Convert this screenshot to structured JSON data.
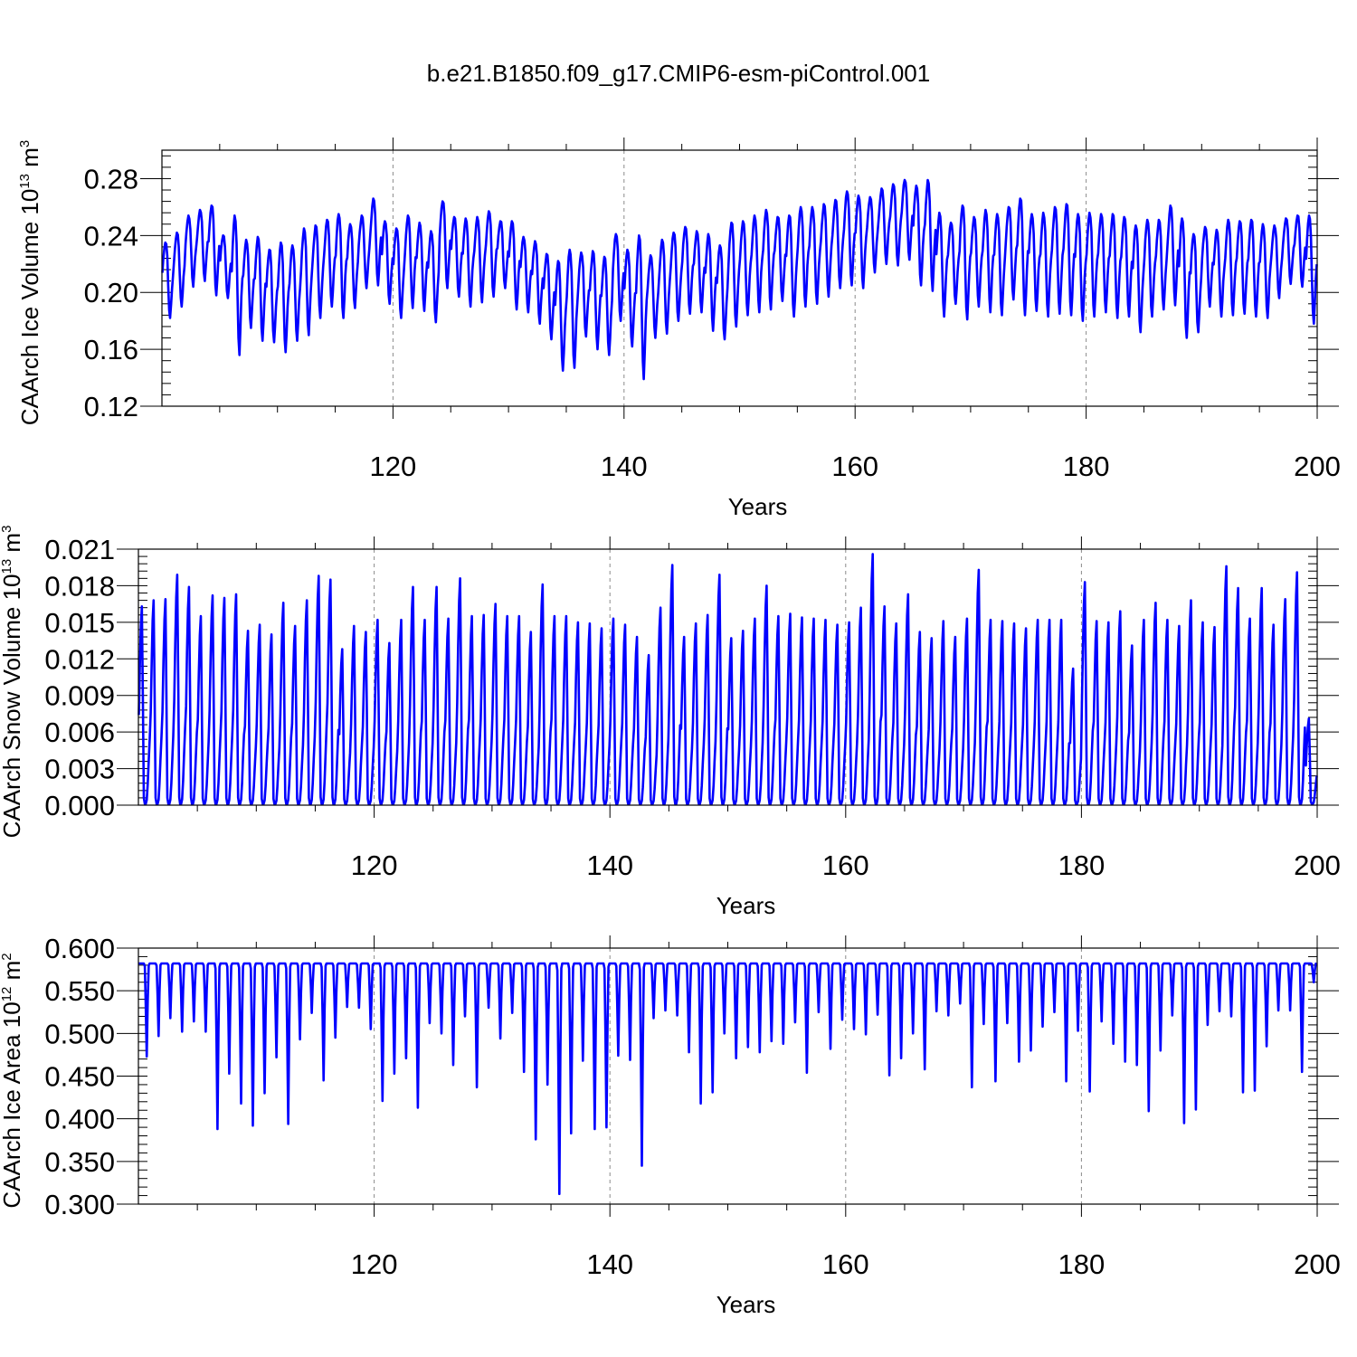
{
  "title": "b.e21.B1850.f09_g17.CMIP6-esm-piControl.001",
  "line_color": "#0000ff",
  "chart_data": [
    {
      "type": "line",
      "id": "ice-volume",
      "title": "",
      "ylabel_main": "CAArch Ice Volume 10",
      "ylabel_exp": "13",
      "ylabel_unit": " m",
      "ylabel_unit_exp": "3",
      "xlabel": "Years",
      "xlim": [
        100,
        200
      ],
      "ylim": [
        0.12,
        0.3
      ],
      "x_ticks": [
        120,
        140,
        160,
        180,
        200
      ],
      "x_tick_labels": [
        "120",
        "140",
        "160",
        "180",
        "200"
      ],
      "y_ticks": [
        0.12,
        0.16,
        0.2,
        0.24,
        0.28
      ],
      "y_tick_labels": [
        "0.12",
        "0.16",
        "0.20",
        "0.24",
        "0.28"
      ],
      "series": [
        {
          "name": "CAArch Ice Volume",
          "x_start": 100,
          "step": 1,
          "yearly_max": [
            0.235,
            0.242,
            0.254,
            0.258,
            0.261,
            0.24,
            0.254,
            0.237,
            0.239,
            0.23,
            0.235,
            0.233,
            0.245,
            0.247,
            0.251,
            0.255,
            0.248,
            0.254,
            0.266,
            0.25,
            0.245,
            0.254,
            0.249,
            0.243,
            0.264,
            0.253,
            0.252,
            0.253,
            0.257,
            0.25,
            0.25,
            0.239,
            0.236,
            0.227,
            0.222,
            0.23,
            0.228,
            0.229,
            0.225,
            0.241,
            0.23,
            0.24,
            0.226,
            0.237,
            0.242,
            0.246,
            0.243,
            0.241,
            0.233,
            0.249,
            0.25,
            0.254,
            0.258,
            0.253,
            0.254,
            0.26,
            0.26,
            0.262,
            0.265,
            0.271,
            0.268,
            0.267,
            0.273,
            0.276,
            0.279,
            0.275,
            0.279,
            0.256,
            0.249,
            0.261,
            0.253,
            0.258,
            0.255,
            0.26,
            0.266,
            0.255,
            0.256,
            0.26,
            0.262,
            0.255,
            0.256,
            0.255,
            0.255,
            0.253,
            0.247,
            0.251,
            0.251,
            0.261,
            0.252,
            0.241,
            0.246,
            0.244,
            0.251,
            0.25,
            0.251,
            0.248,
            0.247,
            0.252,
            0.254,
            0.254
          ],
          "yearly_min": [
            0.182,
            0.19,
            0.204,
            0.208,
            0.198,
            0.196,
            0.156,
            0.175,
            0.166,
            0.165,
            0.158,
            0.166,
            0.17,
            0.182,
            0.19,
            0.182,
            0.189,
            0.203,
            0.205,
            0.192,
            0.182,
            0.189,
            0.187,
            0.179,
            0.203,
            0.197,
            0.19,
            0.193,
            0.197,
            0.203,
            0.188,
            0.186,
            0.178,
            0.167,
            0.145,
            0.147,
            0.169,
            0.16,
            0.156,
            0.18,
            0.162,
            0.139,
            0.168,
            0.171,
            0.18,
            0.185,
            0.186,
            0.173,
            0.167,
            0.176,
            0.184,
            0.186,
            0.188,
            0.194,
            0.183,
            0.19,
            0.192,
            0.197,
            0.203,
            0.205,
            0.203,
            0.214,
            0.22,
            0.219,
            0.223,
            0.205,
            0.201,
            0.183,
            0.192,
            0.181,
            0.19,
            0.186,
            0.184,
            0.195,
            0.184,
            0.187,
            0.183,
            0.185,
            0.184,
            0.18,
            0.183,
            0.186,
            0.182,
            0.183,
            0.172,
            0.183,
            0.188,
            0.191,
            0.168,
            0.172,
            0.19,
            0.183,
            0.184,
            0.185,
            0.183,
            0.182,
            0.196,
            0.206,
            0.204,
            0.178
          ]
        }
      ]
    },
    {
      "type": "line",
      "id": "snow-volume",
      "title": "",
      "ylabel_main": "CAArch Snow Volume 10",
      "ylabel_exp": "13",
      "ylabel_unit": " m",
      "ylabel_unit_exp": "3",
      "xlabel": "Years",
      "xlim": [
        100,
        200
      ],
      "ylim": [
        0.0,
        0.021
      ],
      "x_ticks": [
        120,
        140,
        160,
        180,
        200
      ],
      "x_tick_labels": [
        "120",
        "140",
        "160",
        "180",
        "200"
      ],
      "y_ticks": [
        0.0,
        0.003,
        0.006,
        0.009,
        0.012,
        0.015,
        0.018,
        0.021
      ],
      "y_tick_labels": [
        "0.000",
        "0.003",
        "0.006",
        "0.009",
        "0.012",
        "0.015",
        "0.018",
        "0.021"
      ],
      "series": [
        {
          "name": "CAArch Snow Volume",
          "x_start": 100,
          "step": 1,
          "yearly_max": [
            0.0163,
            0.0168,
            0.0169,
            0.0189,
            0.0179,
            0.0155,
            0.0172,
            0.017,
            0.0173,
            0.0143,
            0.0148,
            0.014,
            0.0166,
            0.0147,
            0.0168,
            0.0188,
            0.0185,
            0.0128,
            0.0147,
            0.0142,
            0.0152,
            0.0133,
            0.0152,
            0.0179,
            0.0152,
            0.0179,
            0.0153,
            0.0186,
            0.0155,
            0.0156,
            0.0165,
            0.0155,
            0.0155,
            0.0142,
            0.0181,
            0.0155,
            0.0155,
            0.015,
            0.0149,
            0.0145,
            0.0153,
            0.0148,
            0.0138,
            0.0123,
            0.0162,
            0.0197,
            0.0138,
            0.0149,
            0.0156,
            0.0189,
            0.0137,
            0.0143,
            0.0153,
            0.018,
            0.0155,
            0.0157,
            0.0154,
            0.0153,
            0.0152,
            0.0148,
            0.015,
            0.0162,
            0.0206,
            0.0163,
            0.0149,
            0.0173,
            0.0142,
            0.0137,
            0.0151,
            0.0138,
            0.0153,
            0.0193,
            0.0152,
            0.0151,
            0.0149,
            0.0145,
            0.0152,
            0.0152,
            0.0152,
            0.0112,
            0.0183,
            0.0151,
            0.015,
            0.0159,
            0.0131,
            0.0152,
            0.0166,
            0.0152,
            0.0147,
            0.0168,
            0.015,
            0.0146,
            0.0196,
            0.0178,
            0.0153,
            0.0178,
            0.0148,
            0.0169,
            0.0191,
            0.0071
          ],
          "yearly_min": [
            0.0001,
            0.0001,
            0.0001,
            0.0001,
            0.0001,
            0.0001,
            0.0001,
            0.0001,
            0.0001,
            0.0001,
            0.0001,
            0.0001,
            0.0001,
            0.0001,
            0.0001,
            0.0001,
            0.0001,
            0.0001,
            0.0001,
            0.0001,
            0.0001,
            0.0001,
            0.0001,
            0.0001,
            0.0001,
            0.0001,
            0.0001,
            0.0001,
            0.0001,
            0.0001,
            0.0001,
            0.0001,
            0.0001,
            0.0001,
            0.0001,
            0.0001,
            0.0001,
            0.0001,
            0.0001,
            0.0001,
            0.0001,
            0.0001,
            0.0001,
            0.0001,
            0.0001,
            0.0001,
            0.0001,
            0.0001,
            0.0001,
            0.0001,
            0.0001,
            0.0001,
            0.0001,
            0.0001,
            0.0001,
            0.0001,
            0.0001,
            0.0001,
            0.0001,
            0.0001,
            0.0001,
            0.0001,
            0.0001,
            0.0001,
            0.0001,
            0.0001,
            0.0001,
            0.0001,
            0.0001,
            0.0001,
            0.0001,
            0.0001,
            0.0001,
            0.0001,
            0.0001,
            0.0001,
            0.0001,
            0.0001,
            0.0001,
            0.0001,
            0.0001,
            0.0001,
            0.0001,
            0.0001,
            0.0001,
            0.0001,
            0.0001,
            0.0001,
            0.0001,
            0.0001,
            0.0001,
            0.0001,
            0.0001,
            0.0001,
            0.0001,
            0.0001,
            0.0001,
            0.0001,
            0.0001,
            0.0001
          ]
        }
      ]
    },
    {
      "type": "line",
      "id": "ice-area",
      "title": "",
      "ylabel_main": "CAArch Ice Area 10",
      "ylabel_exp": "12",
      "ylabel_unit": " m",
      "ylabel_unit_exp": "2",
      "xlabel": "Years",
      "xlim": [
        100,
        200
      ],
      "ylim": [
        0.3,
        0.6
      ],
      "x_ticks": [
        120,
        140,
        160,
        180,
        200
      ],
      "x_tick_labels": [
        "120",
        "140",
        "160",
        "180",
        "200"
      ],
      "y_ticks": [
        0.3,
        0.35,
        0.4,
        0.45,
        0.5,
        0.55,
        0.6
      ],
      "y_tick_labels": [
        "0.300",
        "0.350",
        "0.400",
        "0.450",
        "0.500",
        "0.550",
        "0.600"
      ],
      "series": [
        {
          "name": "CAArch Ice Area",
          "x_start": 100,
          "step": 1,
          "yearly_max": [
            0.582,
            0.582,
            0.582,
            0.582,
            0.582,
            0.582,
            0.582,
            0.582,
            0.582,
            0.582,
            0.582,
            0.582,
            0.582,
            0.582,
            0.582,
            0.582,
            0.582,
            0.582,
            0.582,
            0.582,
            0.582,
            0.582,
            0.582,
            0.582,
            0.582,
            0.582,
            0.582,
            0.582,
            0.582,
            0.582,
            0.582,
            0.582,
            0.582,
            0.582,
            0.582,
            0.582,
            0.582,
            0.582,
            0.582,
            0.582,
            0.582,
            0.582,
            0.582,
            0.582,
            0.582,
            0.582,
            0.582,
            0.582,
            0.582,
            0.582,
            0.582,
            0.582,
            0.582,
            0.582,
            0.582,
            0.582,
            0.582,
            0.582,
            0.582,
            0.582,
            0.582,
            0.582,
            0.582,
            0.582,
            0.582,
            0.582,
            0.582,
            0.582,
            0.582,
            0.582,
            0.582,
            0.582,
            0.582,
            0.582,
            0.582,
            0.582,
            0.582,
            0.582,
            0.582,
            0.582,
            0.582,
            0.582,
            0.582,
            0.582,
            0.582,
            0.582,
            0.582,
            0.582,
            0.582,
            0.582,
            0.582,
            0.582,
            0.582,
            0.582,
            0.582,
            0.582,
            0.582,
            0.582,
            0.582,
            0.582
          ],
          "yearly_min": [
            0.473,
            0.497,
            0.518,
            0.502,
            0.514,
            0.502,
            0.388,
            0.453,
            0.418,
            0.392,
            0.43,
            0.472,
            0.394,
            0.493,
            0.524,
            0.445,
            0.495,
            0.531,
            0.53,
            0.505,
            0.421,
            0.453,
            0.471,
            0.413,
            0.512,
            0.5,
            0.463,
            0.52,
            0.437,
            0.53,
            0.494,
            0.524,
            0.455,
            0.376,
            0.44,
            0.312,
            0.383,
            0.468,
            0.388,
            0.39,
            0.474,
            0.469,
            0.345,
            0.518,
            0.527,
            0.521,
            0.478,
            0.418,
            0.431,
            0.5,
            0.471,
            0.484,
            0.478,
            0.491,
            0.488,
            0.513,
            0.454,
            0.525,
            0.482,
            0.516,
            0.505,
            0.499,
            0.522,
            0.451,
            0.471,
            0.5,
            0.458,
            0.526,
            0.521,
            0.535,
            0.437,
            0.511,
            0.444,
            0.512,
            0.467,
            0.48,
            0.508,
            0.525,
            0.444,
            0.503,
            0.432,
            0.514,
            0.488,
            0.467,
            0.463,
            0.409,
            0.48,
            0.521,
            0.395,
            0.411,
            0.51,
            0.526,
            0.52,
            0.431,
            0.433,
            0.485,
            0.527,
            0.527,
            0.455,
            0.56
          ]
        }
      ]
    }
  ]
}
